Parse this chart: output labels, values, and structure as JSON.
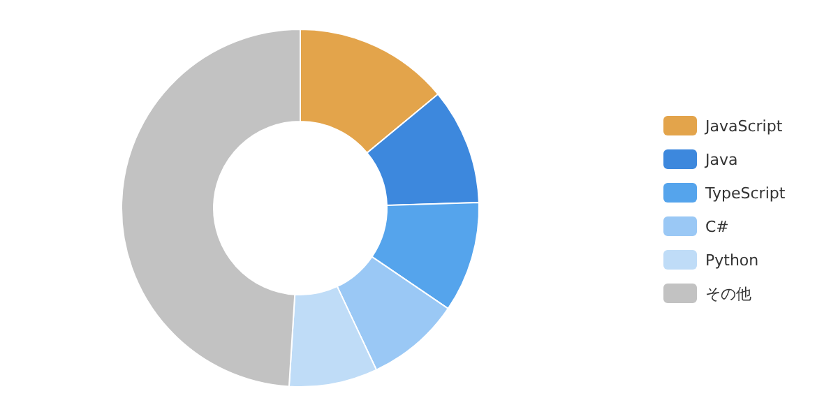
{
  "chart_data": {
    "type": "donut",
    "legend": "right",
    "categories": [
      "JavaScript",
      "Java",
      "TypeScript",
      "C#",
      "Python",
      "その他"
    ],
    "values": [
      14,
      10.5,
      10,
      8.5,
      8,
      49
    ],
    "colors": [
      "#e3a44b",
      "#3d88dd",
      "#55a4ec",
      "#9ac8f5",
      "#bfdcf7",
      "#c2c2c2"
    ]
  }
}
